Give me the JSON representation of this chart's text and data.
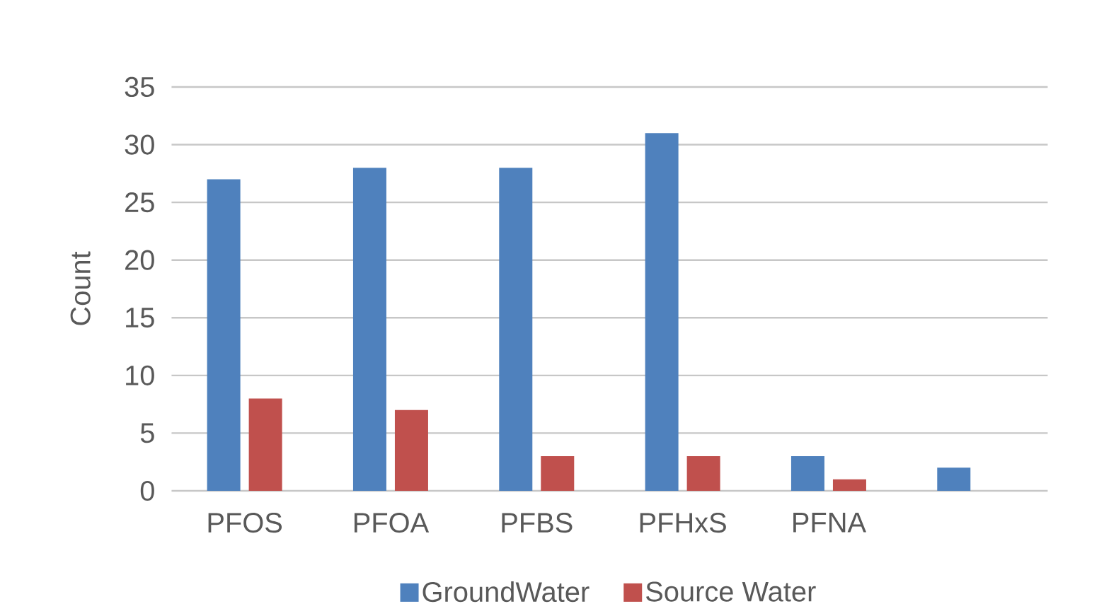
{
  "chart_data": {
    "type": "bar",
    "ylabel": "Count",
    "categories": [
      "PFOS",
      "PFOA",
      "PFBS",
      "PFHxS",
      "PFNA",
      null
    ],
    "series": [
      {
        "name": "GroundWater",
        "color": "#4f81bd",
        "values": [
          27,
          28,
          28,
          31,
          3,
          2
        ]
      },
      {
        "name": "Source Water",
        "color": "#c0504d",
        "values": [
          8,
          7,
          3,
          3,
          1,
          0
        ]
      }
    ],
    "ylim": [
      0,
      35
    ],
    "yticks": [
      0,
      5,
      10,
      15,
      20,
      25,
      30,
      35
    ],
    "grid": "y",
    "legend": "bottom"
  }
}
